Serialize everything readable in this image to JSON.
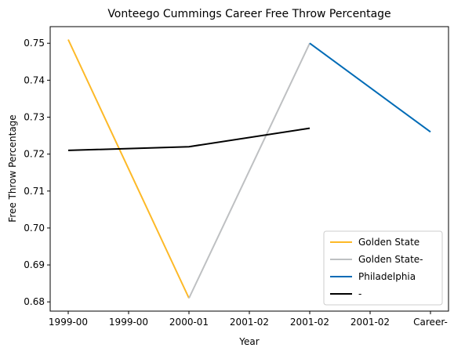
{
  "chart_data": {
    "type": "line",
    "title": "Vonteego Cummings Career Free Throw Percentage",
    "xlabel": "Year",
    "ylabel": "Free Throw Percentage",
    "categories": [
      "1999-00",
      "1999-00",
      "2000-01",
      "2001-02",
      "2001-02",
      "2001-02",
      "Career-"
    ],
    "ylim": [
      0.6775,
      0.7545
    ],
    "yticks": [
      "0.68",
      "0.69",
      "0.70",
      "0.71",
      "0.72",
      "0.73",
      "0.74",
      "0.75"
    ],
    "ytick_values": [
      0.68,
      0.69,
      0.7,
      0.71,
      0.72,
      0.73,
      0.74,
      0.75
    ],
    "grid": false,
    "legend_position": "bottom-right",
    "series": [
      {
        "name": "Golden State",
        "color": "#FDB927",
        "points": [
          [
            0,
            0.751
          ],
          [
            2,
            0.681
          ]
        ]
      },
      {
        "name": "Golden State-",
        "color": "#BEC0C2",
        "points": [
          [
            2,
            0.681
          ],
          [
            4,
            0.75
          ]
        ]
      },
      {
        "name": "Philadelphia",
        "color": "#006BB6",
        "points": [
          [
            4,
            0.75
          ],
          [
            6,
            0.726
          ]
        ]
      },
      {
        "name": "-",
        "color": "#000000",
        "points": [
          [
            0,
            0.721
          ],
          [
            2,
            0.722
          ],
          [
            4,
            0.727
          ]
        ]
      }
    ]
  }
}
